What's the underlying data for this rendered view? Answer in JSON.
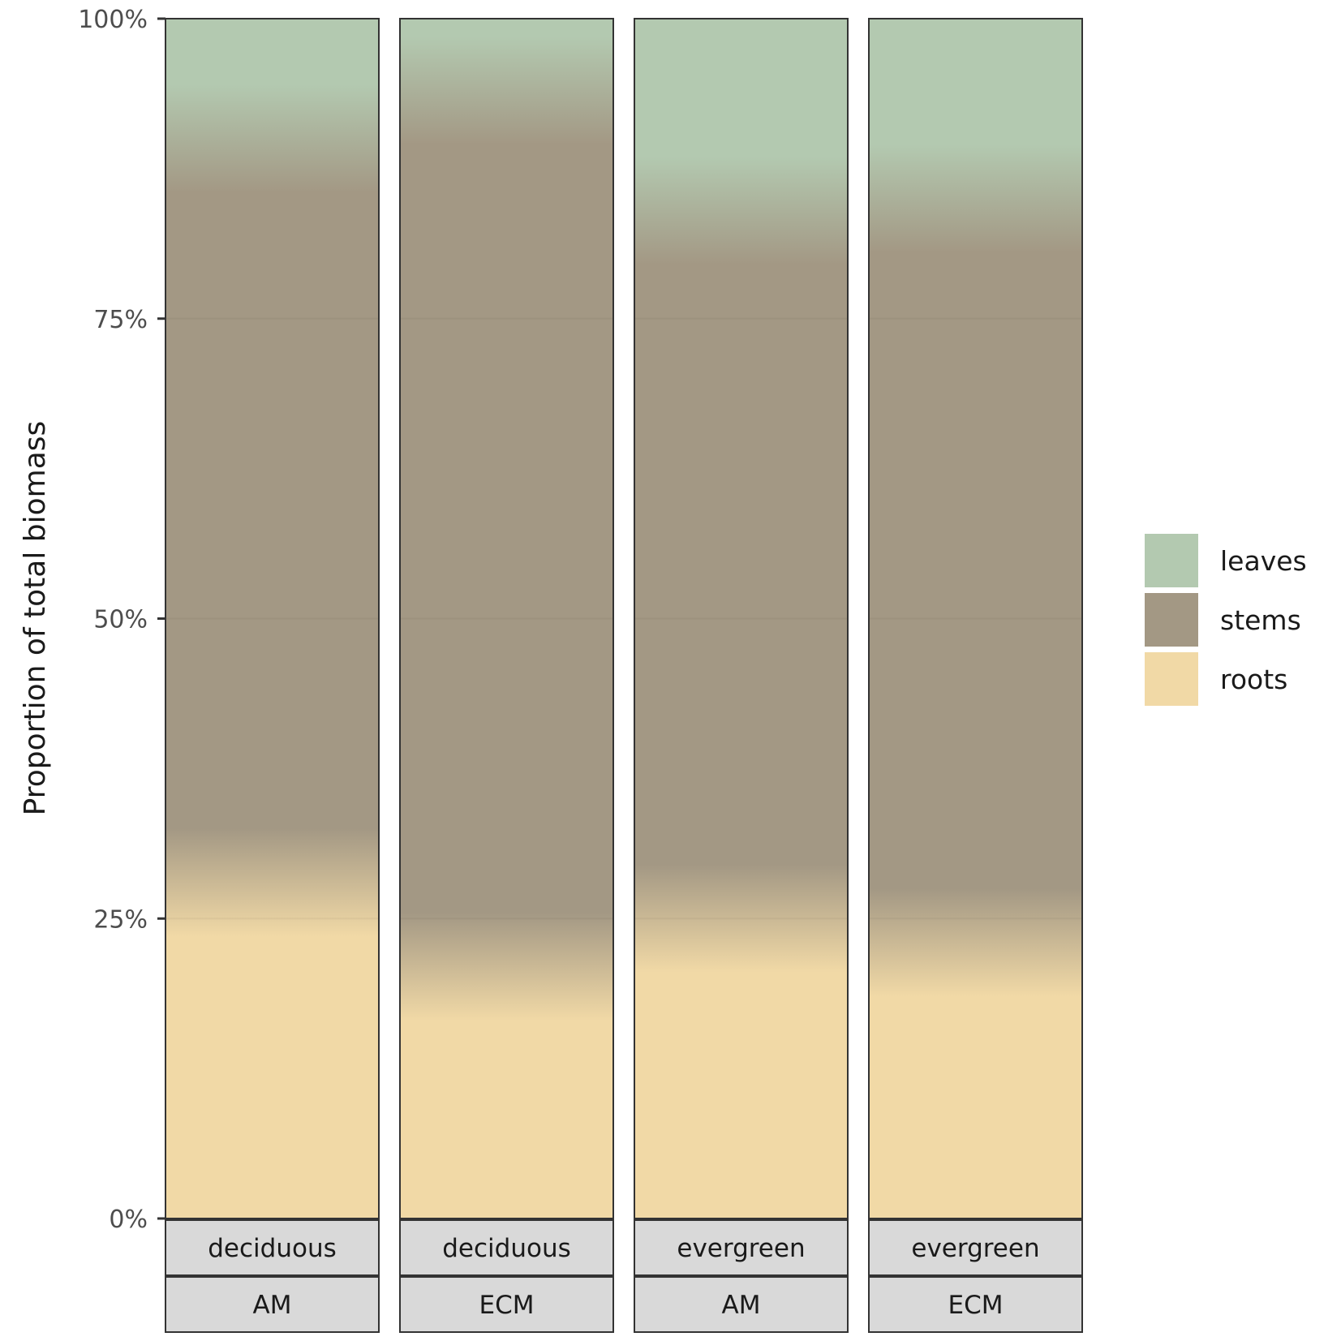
{
  "chart_data": {
    "type": "bar",
    "stacked": true,
    "normalized": true,
    "title": "",
    "xlabel": "",
    "ylabel": "Proportion of total biomass",
    "ylim": [
      0,
      1
    ],
    "y_ticks": [
      {
        "value": 0,
        "label": "0%"
      },
      {
        "value": 0.25,
        "label": "25%"
      },
      {
        "value": 0.5,
        "label": "50%"
      },
      {
        "value": 0.75,
        "label": "75%"
      },
      {
        "value": 1,
        "label": "100%"
      }
    ],
    "facets": [
      {
        "leaf_habit": "deciduous",
        "mycorrhiza": "AM"
      },
      {
        "leaf_habit": "deciduous",
        "mycorrhiza": "ECM"
      },
      {
        "leaf_habit": "evergreen",
        "mycorrhiza": "AM"
      },
      {
        "leaf_habit": "evergreen",
        "mycorrhiza": "ECM"
      }
    ],
    "series": [
      {
        "name": "roots",
        "color": "#f1d9a6",
        "values": [
          0.28,
          0.21,
          0.25,
          0.23
        ]
      },
      {
        "name": "stems",
        "color": "#a39884",
        "values": [
          0.62,
          0.73,
          0.59,
          0.62
        ]
      },
      {
        "name": "leaves",
        "color": "#b3c9b0",
        "values": [
          0.1,
          0.06,
          0.16,
          0.15
        ]
      }
    ],
    "legend": {
      "position": "right",
      "order": [
        "leaves",
        "stems",
        "roots"
      ]
    },
    "grid": true
  }
}
